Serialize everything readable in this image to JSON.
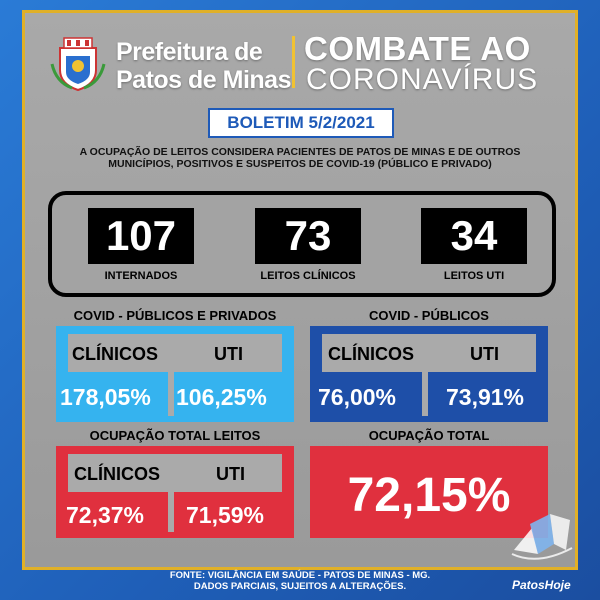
{
  "header": {
    "pref_line1": "Prefeitura de",
    "pref_line2": "Patos de Minas",
    "combate": "COMBATE AO",
    "corona": "CORONAVÍRUS"
  },
  "boletim": "BOLETIM 5/2/2021",
  "note_line1": "A OCUPAÇÃO DE LEITOS CONSIDERA PACIENTES DE PATOS DE MINAS E DE OUTROS",
  "note_line2": "MUNICÍPIOS, POSITIVOS E SUSPEITOS DE COVID-19 (PÚBLICO E PRIVADO)",
  "counts": [
    {
      "value": "107",
      "label": "INTERNADOS"
    },
    {
      "value": "73",
      "label": "LEITOS CLÍNICOS"
    },
    {
      "value": "34",
      "label": "LEITOS UTI"
    }
  ],
  "sections": {
    "publicos_privados": {
      "title": "COVID - PÚBLICOS E PRIVADOS",
      "clinicos_label": "CLÍNICOS",
      "uti_label": "UTI",
      "clinicos": "178,05%",
      "uti": "106,25%"
    },
    "publicos": {
      "title": "COVID - PÚBLICOS",
      "clinicos_label": "CLÍNICOS",
      "uti_label": "UTI",
      "clinicos": "76,00%",
      "uti": "73,91%"
    },
    "ocupacao_leitos": {
      "title": "OCUPAÇÃO TOTAL LEITOS",
      "clinicos_label": "CLÍNICOS",
      "uti_label": "UTI",
      "clinicos": "72,37%",
      "uti": "71,59%"
    },
    "ocupacao_total": {
      "title": "OCUPAÇÃO TOTAL",
      "value": "72,15%"
    }
  },
  "footer_line1": "FONTE: VIGILÂNCIA EM SAÚDE - PATOS DE MINAS - MG.",
  "footer_line2": "DADOS PARCIAIS, SUJEITOS A ALTERAÇÕES.",
  "watermark": "PatosHoje",
  "colors": {
    "light_blue": "#35b3ef",
    "dark_blue": "#1e4fa8",
    "red": "#e0303e",
    "gold": "#e0b028"
  },
  "icons": [
    "municipal-crest-icon",
    "patoshoje-logo-icon"
  ]
}
